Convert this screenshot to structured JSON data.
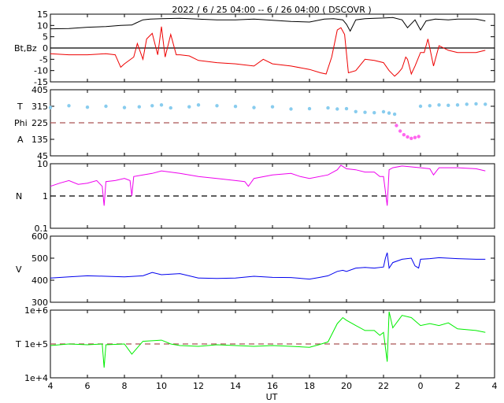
{
  "chart_data": {
    "type": "line",
    "title": "2022 /  6 / 25  04:00 --  6 / 26  04:00 ( DSCOVR )",
    "xlabel": "UT",
    "x_range": [
      4,
      28
    ],
    "x_ticks": [
      "4",
      "6",
      "8",
      "10",
      "12",
      "14",
      "16",
      "18",
      "20",
      "22",
      "0",
      "2",
      "4"
    ],
    "panels": [
      {
        "id": "mag",
        "ylabel": "Bt,Bz",
        "ylim": [
          -15,
          15
        ],
        "y_ticks": [
          "15",
          "10",
          "5",
          "0",
          "-5",
          "-10",
          "-15"
        ],
        "y_tick_values": [
          15,
          10,
          5,
          0,
          -5,
          -10,
          -15
        ],
        "reference_line": {
          "value": 0,
          "color": "#000000",
          "style": "solid"
        },
        "series": [
          {
            "color": "#000000",
            "x": [
              4.0,
              5.0,
              6.0,
              7.0,
              7.8,
              8.4,
              8.6,
              9.0,
              9.4,
              10.0,
              11.0,
              12.0,
              13.0,
              14.0,
              15.0,
              16.0,
              17.0,
              18.0,
              18.8,
              19.3,
              19.8,
              20.0,
              20.2,
              20.5,
              21.0,
              21.5,
              22.0,
              22.5,
              23.0,
              23.3,
              23.7,
              24.0,
              24.3,
              24.8,
              25.5,
              26.0,
              27.0,
              27.5
            ],
            "y": [
              8.5,
              8.6,
              9.2,
              9.5,
              10.0,
              10.2,
              11.0,
              12.5,
              12.8,
              13.0,
              13.2,
              12.8,
              12.5,
              12.5,
              12.8,
              12.3,
              11.8,
              11.5,
              12.8,
              13.0,
              12.5,
              10.5,
              7.5,
              12.5,
              13.0,
              13.2,
              13.3,
              13.5,
              12.5,
              9.0,
              12.5,
              8.0,
              12.0,
              12.8,
              12.5,
              12.8,
              12.8,
              12.0
            ]
          },
          {
            "color": "#ee0000",
            "x": [
              4.0,
              5.0,
              6.0,
              7.0,
              7.5,
              7.8,
              8.0,
              8.5,
              8.7,
              9.0,
              9.2,
              9.5,
              9.8,
              10.0,
              10.2,
              10.5,
              10.8,
              11.0,
              11.5,
              12.0,
              13.0,
              14.0,
              15.0,
              15.5,
              16.0,
              17.0,
              18.0,
              18.6,
              18.9,
              19.2,
              19.5,
              19.7,
              19.9,
              20.1,
              20.5,
              21.0,
              21.5,
              22.0,
              22.3,
              22.6,
              22.8,
              23.0,
              23.2,
              23.3,
              23.5,
              23.7,
              24.0,
              24.2,
              24.4,
              24.7,
              25.0,
              25.5,
              26.0,
              27.0,
              27.5
            ],
            "y": [
              -2.5,
              -3.0,
              -3.0,
              -2.5,
              -3.0,
              -8.5,
              -7.0,
              -4.0,
              2.0,
              -5.0,
              4.0,
              6.5,
              -3.0,
              9.5,
              -4.0,
              6.0,
              -3.0,
              -3.0,
              -3.5,
              -5.5,
              -6.5,
              -7.0,
              -8.0,
              -5.0,
              -7.0,
              -8.0,
              -9.5,
              -11.0,
              -11.5,
              -4.0,
              8.0,
              9.0,
              6.0,
              -11.0,
              -10.0,
              -5.0,
              -5.5,
              -6.5,
              -10.0,
              -12.5,
              -11.0,
              -9.0,
              -4.0,
              -5.0,
              -11.5,
              -8.0,
              -2.0,
              -2.0,
              4.0,
              -8.0,
              1.0,
              -1.0,
              -2.0,
              -2.0,
              -1.0
            ]
          }
        ]
      },
      {
        "id": "phi",
        "ylabel_lines": [
          "T",
          "Phi",
          "A"
        ],
        "ylim": [
          45,
          405
        ],
        "y_ticks": [
          "405",
          "315",
          "225",
          "135",
          "45"
        ],
        "y_tick_values": [
          405,
          315,
          225,
          135,
          45
        ],
        "reference_line": {
          "value": 225,
          "color": "#aa5555",
          "style": "dashed"
        },
        "series": [
          {
            "color": "#88ccee",
            "marker": "dots",
            "x": [
              4.0,
              5.0,
              6.0,
              7.0,
              8.0,
              8.8,
              9.5,
              10.0,
              10.5,
              11.5,
              12.0,
              13.0,
              14.0,
              15.0,
              16.0,
              17.0,
              18.0,
              19.0,
              19.5,
              20.0,
              20.5,
              21.0,
              21.5,
              22.0,
              22.3,
              22.6
            ],
            "y": [
              308,
              318,
              310,
              315,
              308,
              312,
              318,
              322,
              306,
              312,
              322,
              318,
              314,
              308,
              312,
              300,
              302,
              306,
              300,
              302,
              286,
              282,
              280,
              285,
              278,
              272
            ]
          },
          {
            "color": "#ff66ee",
            "marker": "dots",
            "x": [
              22.7,
              22.9,
              23.1,
              23.3,
              23.5,
              23.7,
              23.9
            ],
            "y": [
              210,
              180,
              160,
              148,
              140,
              145,
              150
            ]
          },
          {
            "color": "#88ccee",
            "marker": "dots",
            "x": [
              24.0,
              24.5,
              25.0,
              25.5,
              26.0,
              26.5,
              27.0,
              27.5
            ],
            "y": [
              315,
              318,
              322,
              320,
              322,
              326,
              328,
              326
            ]
          }
        ]
      },
      {
        "id": "density",
        "ylabel": "N",
        "log": true,
        "ylim": [
          0.1,
          10
        ],
        "y_ticks": [
          "10",
          "1",
          "0.1"
        ],
        "y_tick_values": [
          10,
          1,
          0.1
        ],
        "reference_line": {
          "value": 1,
          "color": "#000000",
          "style": "dashed"
        },
        "series": [
          {
            "color": "#ee00ee",
            "x": [
              4.0,
              4.5,
              5.0,
              5.5,
              6.0,
              6.5,
              6.8,
              6.9,
              7.0,
              7.5,
              8.0,
              8.3,
              8.4,
              8.5,
              9.0,
              9.5,
              10.0,
              11.0,
              12.0,
              13.0,
              14.0,
              14.5,
              14.7,
              15.0,
              16.0,
              17.0,
              17.5,
              18.0,
              19.0,
              19.5,
              19.7,
              20.0,
              20.5,
              21.0,
              21.5,
              21.8,
              22.0,
              22.2,
              22.3,
              22.5,
              23.0,
              24.0,
              24.5,
              24.7,
              25.0,
              26.0,
              27.0,
              27.5
            ],
            "y": [
              2.0,
              2.5,
              3.0,
              2.3,
              2.5,
              3.0,
              2.0,
              0.5,
              2.8,
              3.0,
              3.5,
              3.0,
              1.0,
              4.0,
              4.5,
              5.0,
              6.0,
              5.0,
              4.0,
              3.5,
              3.0,
              2.8,
              2.0,
              3.5,
              4.5,
              5.0,
              4.0,
              3.5,
              4.5,
              6.5,
              9.0,
              7.0,
              6.5,
              5.5,
              5.5,
              4.0,
              4.0,
              0.5,
              6.5,
              7.5,
              8.5,
              7.5,
              7.0,
              4.5,
              7.5,
              7.5,
              7.0,
              6.0
            ]
          }
        ]
      },
      {
        "id": "speed",
        "ylabel": "V",
        "ylim": [
          300,
          600
        ],
        "y_ticks": [
          "600",
          "500",
          "400",
          "300"
        ],
        "y_tick_values": [
          600,
          500,
          400,
          300
        ],
        "series": [
          {
            "color": "#0000ee",
            "x": [
              4.0,
              5.0,
              6.0,
              7.0,
              8.0,
              9.0,
              9.5,
              10.0,
              11.0,
              12.0,
              13.0,
              14.0,
              15.0,
              16.0,
              17.0,
              18.0,
              18.5,
              19.0,
              19.5,
              19.8,
              20.0,
              20.5,
              21.0,
              21.5,
              22.0,
              22.1,
              22.2,
              22.3,
              22.5,
              23.0,
              23.5,
              23.7,
              23.9,
              24.0,
              24.5,
              25.0,
              26.0,
              27.0,
              27.5
            ],
            "y": [
              410,
              415,
              420,
              418,
              415,
              420,
              435,
              425,
              430,
              410,
              408,
              410,
              418,
              413,
              412,
              405,
              412,
              420,
              440,
              445,
              440,
              455,
              458,
              455,
              460,
              500,
              525,
              455,
              480,
              495,
              500,
              465,
              455,
              495,
              498,
              502,
              498,
              495,
              495
            ]
          }
        ]
      },
      {
        "id": "temperature",
        "ylabel": "T",
        "log": true,
        "ylim": [
          10000,
          1000000
        ],
        "y_ticks": [
          "1e+6",
          "1e+5",
          "1e+4"
        ],
        "y_tick_values": [
          1000000,
          100000,
          10000
        ],
        "reference_line": {
          "value": 100000,
          "color": "#aa5555",
          "style": "dashed"
        },
        "series": [
          {
            "color": "#00ee00",
            "x": [
              4.0,
              5.0,
              6.0,
              6.8,
              6.9,
              7.0,
              8.0,
              8.4,
              9.0,
              10.0,
              10.5,
              11.0,
              12.0,
              13.0,
              14.0,
              15.0,
              16.0,
              17.0,
              18.0,
              18.5,
              19.0,
              19.5,
              19.8,
              20.0,
              20.5,
              21.0,
              21.5,
              21.8,
              22.0,
              22.2,
              22.3,
              22.5,
              23.0,
              23.5,
              24.0,
              24.5,
              25.0,
              25.5,
              26.0,
              27.0,
              27.5
            ],
            "y": [
              90000,
              100000,
              95000,
              100000,
              20000,
              95000,
              100000,
              50000,
              120000,
              130000,
              100000,
              90000,
              85000,
              95000,
              90000,
              85000,
              90000,
              85000,
              80000,
              95000,
              115000,
              400000,
              600000,
              500000,
              350000,
              250000,
              250000,
              180000,
              220000,
              30000,
              900000,
              300000,
              700000,
              600000,
              350000,
              400000,
              350000,
              420000,
              280000,
              250000,
              220000
            ]
          }
        ]
      }
    ]
  }
}
